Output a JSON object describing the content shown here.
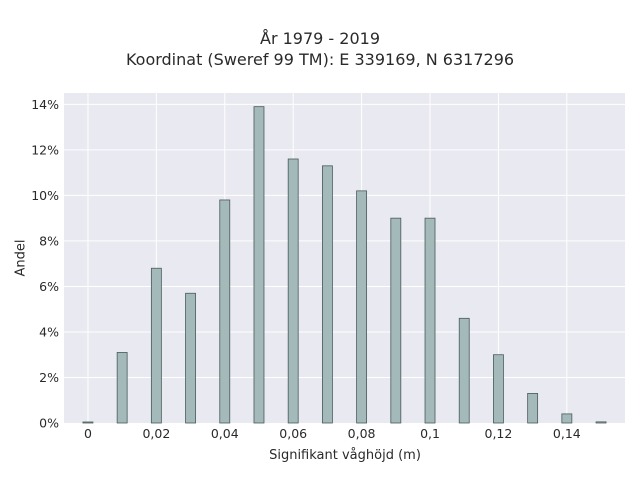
{
  "chart_data": {
    "type": "bar",
    "title": "År 1979 - 2019",
    "subtitle": "Koordinat (Sweref 99 TM): E 339169, N 6317296",
    "xlabel": "Signifikant våghöjd (m)",
    "ylabel": "Andel",
    "x": [
      0,
      0.01,
      0.02,
      0.03,
      0.04,
      0.05,
      0.06,
      0.07,
      0.08,
      0.09,
      0.1,
      0.11,
      0.12,
      0.13,
      0.14,
      0.15
    ],
    "values": [
      0.0,
      3.1,
      6.8,
      5.7,
      9.8,
      13.9,
      11.6,
      11.3,
      10.2,
      9.0,
      9.0,
      4.6,
      3.0,
      1.3,
      0.4,
      0.05
    ],
    "xlim": [
      -0.007,
      0.157
    ],
    "ylim": [
      0,
      14.5
    ],
    "xticks": [
      0,
      0.02,
      0.04,
      0.06,
      0.08,
      0.1,
      0.12,
      0.14
    ],
    "xtick_labels": [
      "0",
      "0,02",
      "0,04",
      "0,06",
      "0,08",
      "0,1",
      "0,12",
      "0,14"
    ],
    "yticks": [
      0,
      2,
      4,
      6,
      8,
      10,
      12,
      14
    ],
    "ytick_labels": [
      "0%",
      "2%",
      "4%",
      "6%",
      "8%",
      "10%",
      "12%",
      "14%"
    ],
    "grid": true,
    "colors": {
      "bar_fill": "#a3b9ba",
      "bar_edge": "#4a5a5a",
      "plot_bg": "#e9e9f1",
      "grid": "#ffffff"
    }
  }
}
